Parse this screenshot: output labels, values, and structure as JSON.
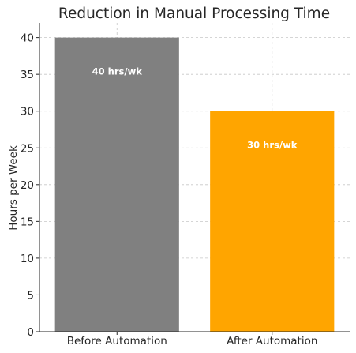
{
  "chart_data": {
    "type": "bar",
    "title": "Reduction in Manual Processing Time",
    "xlabel": "",
    "ylabel": "Hours per Week",
    "categories": [
      "Before Automation",
      "After Automation"
    ],
    "values": [
      40,
      30
    ],
    "data_labels": [
      "40 hrs/wk",
      "30 hrs/wk"
    ],
    "colors": [
      "#808080",
      "#ffa500"
    ],
    "ylim": [
      0,
      42
    ],
    "yticks": [
      0,
      5,
      10,
      15,
      20,
      25,
      30,
      35,
      40
    ],
    "grid": true,
    "legend": "none"
  }
}
